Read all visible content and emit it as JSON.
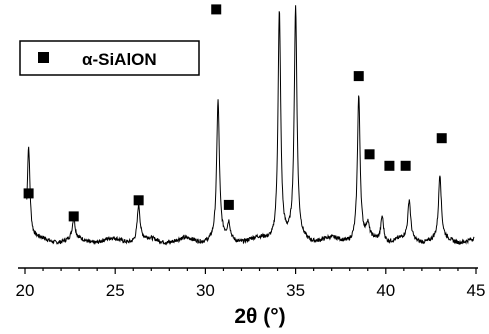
{
  "chart_data": {
    "type": "line",
    "xlabel": "2θ (°)",
    "ylabel": "",
    "xlim": [
      20,
      45
    ],
    "x_ticks": [
      "20",
      "25",
      "30",
      "35",
      "40",
      "45"
    ],
    "y_axis_shown": false,
    "grid": false,
    "legend": {
      "placement": "top-left",
      "marker": "filled-square",
      "label": "α-SiAlON"
    },
    "series": [
      {
        "peaks": [
          {
            "x": 20.2,
            "height": 0.41
          },
          {
            "x": 22.7,
            "height": 0.09
          },
          {
            "x": 26.3,
            "height": 0.16
          },
          {
            "x": 30.7,
            "height": 0.6
          },
          {
            "x": 31.3,
            "height": 0.07
          },
          {
            "x": 34.1,
            "height": 1.0
          },
          {
            "x": 35.0,
            "height": 1.0
          },
          {
            "x": 38.5,
            "height": 0.63
          },
          {
            "x": 39.0,
            "height": 0.06
          },
          {
            "x": 39.8,
            "height": 0.11
          },
          {
            "x": 41.3,
            "height": 0.17
          },
          {
            "x": 43.0,
            "height": 0.28
          }
        ]
      }
    ],
    "markers": {
      "label": "α-SiAlON",
      "positions": [
        {
          "x": 20.2,
          "y": 0.22
        },
        {
          "x": 22.7,
          "y": 0.12
        },
        {
          "x": 26.3,
          "y": 0.19
        },
        {
          "x": 30.6,
          "y": 1.02
        },
        {
          "x": 31.3,
          "y": 0.17
        },
        {
          "x": 34.1,
          "y": 1.09
        },
        {
          "x": 35.0,
          "y": 1.09
        },
        {
          "x": 38.5,
          "y": 0.73
        },
        {
          "x": 39.1,
          "y": 0.39
        },
        {
          "x": 40.2,
          "y": 0.34
        },
        {
          "x": 41.1,
          "y": 0.34
        },
        {
          "x": 43.1,
          "y": 0.46
        }
      ]
    }
  }
}
